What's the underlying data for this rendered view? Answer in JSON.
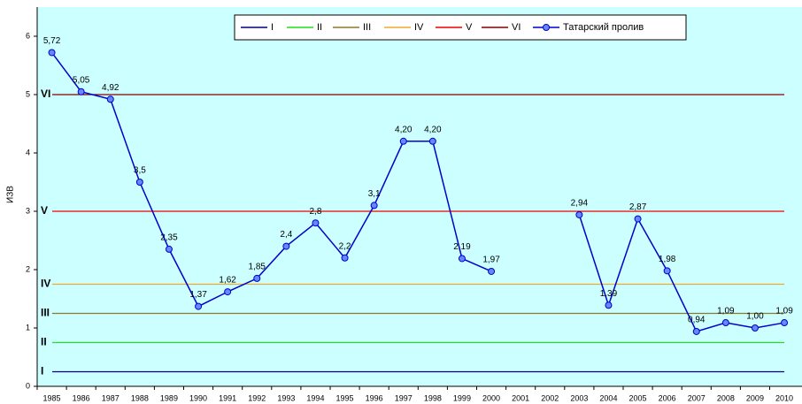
{
  "chart_data": {
    "type": "line",
    "y_label": "ИЗВ",
    "categories": [
      "1985",
      "1986",
      "1987",
      "1988",
      "1989",
      "1990",
      "1991",
      "1992",
      "1993",
      "1994",
      "1995",
      "1996",
      "1997",
      "1998",
      "1999",
      "2000",
      "2001",
      "2002",
      "2003",
      "2004",
      "2005",
      "2006",
      "2007",
      "2008",
      "2009",
      "2010"
    ],
    "ylim": [
      0,
      6.5
    ],
    "yticks": [
      0,
      1,
      2,
      3,
      4,
      5,
      6
    ],
    "legend": "top",
    "series": [
      {
        "name": "I",
        "color": "#000080",
        "values": [
          0.25,
          0.25,
          0.25,
          0.25,
          0.25,
          0.25,
          0.25,
          0.25,
          0.25,
          0.25,
          0.25,
          0.25,
          0.25,
          0.25,
          0.25,
          0.25,
          0.25,
          0.25,
          0.25,
          0.25,
          0.25,
          0.25,
          0.25,
          0.25,
          0.25,
          0.25
        ]
      },
      {
        "name": "II",
        "color": "#22dd22",
        "values": [
          0.75,
          0.75,
          0.75,
          0.75,
          0.75,
          0.75,
          0.75,
          0.75,
          0.75,
          0.75,
          0.75,
          0.75,
          0.75,
          0.75,
          0.75,
          0.75,
          0.75,
          0.75,
          0.75,
          0.75,
          0.75,
          0.75,
          0.75,
          0.75,
          0.75,
          0.75
        ]
      },
      {
        "name": "III",
        "color": "#8b7a2b",
        "values": [
          1.25,
          1.25,
          1.25,
          1.25,
          1.25,
          1.25,
          1.25,
          1.25,
          1.25,
          1.25,
          1.25,
          1.25,
          1.25,
          1.25,
          1.25,
          1.25,
          1.25,
          1.25,
          1.25,
          1.25,
          1.25,
          1.25,
          1.25,
          1.25,
          1.25,
          1.25
        ]
      },
      {
        "name": "IV",
        "color": "#f0a830",
        "values": [
          1.75,
          1.75,
          1.75,
          1.75,
          1.75,
          1.75,
          1.75,
          1.75,
          1.75,
          1.75,
          1.75,
          1.75,
          1.75,
          1.75,
          1.75,
          1.75,
          1.75,
          1.75,
          1.75,
          1.75,
          1.75,
          1.75,
          1.75,
          1.75,
          1.75,
          1.75
        ]
      },
      {
        "name": "V",
        "color": "#ee0000",
        "values": [
          3,
          3,
          3,
          3,
          3,
          3,
          3,
          3,
          3,
          3,
          3,
          3,
          3,
          3,
          3,
          3,
          3,
          3,
          3,
          3,
          3,
          3,
          3,
          3,
          3,
          3
        ]
      },
      {
        "name": "VI",
        "color": "#800000",
        "values": [
          5,
          5,
          5,
          5,
          5,
          5,
          5,
          5,
          5,
          5,
          5,
          5,
          5,
          5,
          5,
          5,
          5,
          5,
          5,
          5,
          5,
          5,
          5,
          5,
          5,
          5
        ]
      },
      {
        "name": "Татарский пролив",
        "color": "#0000cc",
        "marker_color": "#6688ff",
        "values": [
          5.72,
          5.05,
          4.92,
          3.5,
          2.35,
          1.37,
          1.62,
          1.85,
          2.4,
          2.8,
          2.2,
          3.1,
          4.2,
          4.2,
          2.19,
          1.97,
          null,
          null,
          2.94,
          1.39,
          2.87,
          1.98,
          0.94,
          1.09,
          1.0,
          1.09
        ],
        "value_labels": [
          "5,72",
          "5,05",
          "4,92",
          "3,5",
          "2,35",
          "1,37",
          "1,62",
          "1,85",
          "2,4",
          "2,8",
          "2,2",
          "3,1",
          "4,20",
          "4,20",
          "2,19",
          "1,97",
          null,
          null,
          "2,94",
          "1,39",
          "2,87",
          "1,98",
          "0,94",
          "1,09",
          "1,00",
          "1,09"
        ]
      }
    ]
  }
}
